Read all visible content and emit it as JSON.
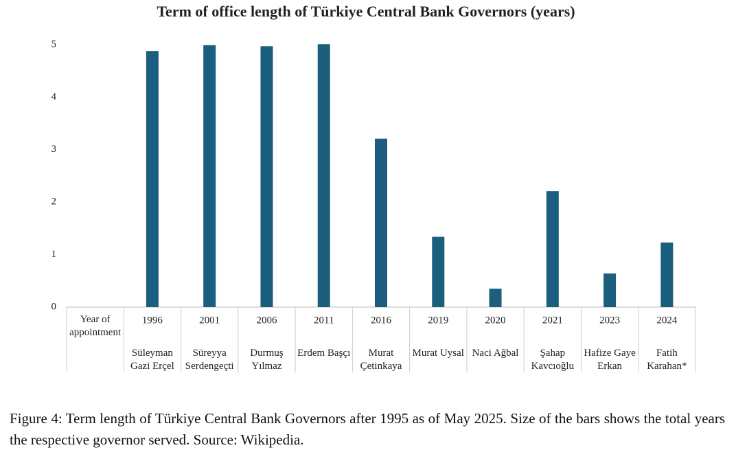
{
  "chart_data": {
    "type": "bar",
    "title": "Term of office length of Türkiye Central Bank Governors (years)",
    "x_axis_header": "Year of appointment",
    "years": [
      "1996",
      "2001",
      "2006",
      "2011",
      "2016",
      "2019",
      "2020",
      "2021",
      "2023",
      "2024"
    ],
    "categories": [
      "Süleyman Gazi Erçel",
      "Süreyya Serdengeçti",
      "Durmuş Yılmaz",
      "Erdem Başçı",
      "Murat Çetinkaya",
      "Murat Uysal",
      "Naci Ağbal",
      "Şahap Kavcıoğlu",
      "Hafize Gaye Erkan",
      "Fatih Karahan*"
    ],
    "values": [
      4.88,
      4.99,
      4.97,
      5.01,
      3.21,
      1.34,
      0.35,
      2.21,
      0.64,
      1.23
    ],
    "color": "#1b5e7e",
    "ylim": [
      0,
      5
    ],
    "yticks": [
      0,
      1,
      2,
      3,
      4,
      5
    ],
    "grid": false
  },
  "caption": "Figure 4: Term length of Türkiye Central Bank Governors after 1995 as of May 2025. Size of the bars shows the total years the respective governor served. Source: Wikipedia."
}
